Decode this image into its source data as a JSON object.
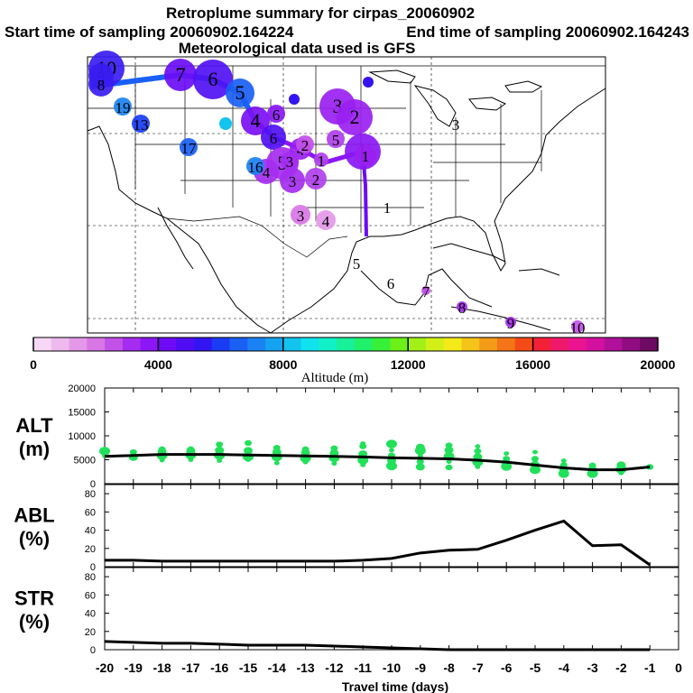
{
  "header": {
    "title": "Retroplume summary for cirpas_20060902",
    "start_label": "Start time of sampling 20060902.164224",
    "end_label": "End time of sampling 20060902.164243",
    "met_label": "Meteorological data used is GFS"
  },
  "colorbar": {
    "min": 0,
    "max": 20000,
    "tick_labels": [
      "0",
      "4000",
      "8000",
      "12000",
      "16000",
      "20000"
    ],
    "tick_values": [
      0,
      4000,
      8000,
      12000,
      16000,
      20000
    ],
    "label": "Altitude (m)",
    "colors": [
      "#f6d8f6",
      "#eebaee",
      "#e498e8",
      "#d876e6",
      "#c251e8",
      "#a52cf0",
      "#8a17f4",
      "#6e0af6",
      "#500df4",
      "#3215f2",
      "#1a3cf4",
      "#1a60f4",
      "#1a82f2",
      "#15a2f0",
      "#12c4ee",
      "#10e2ee",
      "#12f0c8",
      "#18f09a",
      "#20f06a",
      "#38f038",
      "#6cf018",
      "#a2f018",
      "#d2f018",
      "#f4ea18",
      "#f4c418",
      "#f49c18",
      "#f47418",
      "#f44a18",
      "#f42038",
      "#f0186a",
      "#ea1490",
      "#d410a0",
      "#b0109a",
      "#900c80",
      "#6e0a62"
    ]
  },
  "map": {
    "trajectory_labels": [
      {
        "text": "10",
        "c": "#3a1cf2"
      },
      {
        "text": "9",
        "c": "#3a1cf2"
      },
      {
        "text": "8",
        "c": "#3a1cf2"
      },
      {
        "text": "7",
        "c": "#6a0df6"
      },
      {
        "text": "6",
        "c": "#5010f4"
      },
      {
        "text": "5",
        "c": "#1a60f4"
      },
      {
        "text": "4",
        "c": "#7a10f4"
      },
      {
        "text": "3",
        "c": "#9a20f0"
      },
      {
        "text": "2",
        "c": "#9a20f0"
      },
      {
        "text": "1",
        "c": "#8a17f4"
      },
      {
        "text": "6",
        "c": "#5010f4"
      },
      {
        "text": "5",
        "c": "#a52cf0"
      },
      {
        "text": "4",
        "c": "#a52cf0"
      },
      {
        "text": "3",
        "c": "#a52cf0"
      },
      {
        "text": "2",
        "c": "#b040ec"
      },
      {
        "text": "1",
        "c": "#b040ec"
      },
      {
        "text": "1",
        "c": "#9a20f0"
      },
      {
        "text": "3",
        "c": "#d876e6"
      },
      {
        "text": "4",
        "c": "#e498e8"
      },
      {
        "text": "5",
        "c": "#b040ec"
      },
      {
        "text": "6",
        "c": "#8a17f4"
      },
      {
        "text": "4",
        "c": "#9a20f0"
      },
      {
        "text": "3",
        "c": "#a52cf0"
      },
      {
        "text": "2",
        "c": "#c251e8"
      },
      {
        "text": "19",
        "c": "#1a82f2"
      },
      {
        "text": "13",
        "c": "#1a3cf4"
      },
      {
        "text": "17",
        "c": "#1a60f4"
      },
      {
        "text": "16",
        "c": "#1a82f2"
      },
      {
        "text": "3",
        "c": "#000000"
      },
      {
        "text": "1",
        "c": "#000000"
      },
      {
        "text": "5",
        "c": "#000000"
      },
      {
        "text": "6",
        "c": "#000000"
      },
      {
        "text": "7",
        "c": "#c251e8"
      },
      {
        "text": "8",
        "c": "#a52cf0"
      },
      {
        "text": "9",
        "c": "#a52cf0"
      },
      {
        "text": "10",
        "c": "#c251e8"
      }
    ]
  },
  "chart_data": [
    {
      "type": "scatter",
      "name": "ALT",
      "ylabel_line1": "ALT",
      "ylabel_line2": "(m)",
      "ylim": [
        0,
        20000
      ],
      "yticks": [
        "0",
        "5000",
        "10000",
        "15000",
        "20000"
      ],
      "ytick_values": [
        0,
        5000,
        10000,
        15000,
        20000
      ],
      "point_color": "#22e05a",
      "x": [
        -20,
        -19,
        -18,
        -17,
        -16,
        -15,
        -14,
        -13,
        -12,
        -11,
        -10,
        -9,
        -8,
        -7,
        -6,
        -5,
        -4,
        -3,
        -2,
        -1
      ],
      "mean_line": [
        5700,
        5900,
        6100,
        6100,
        6100,
        6000,
        5900,
        5800,
        5700,
        5600,
        5400,
        5300,
        5200,
        4900,
        4500,
        3900,
        3300,
        2900,
        2900,
        3500
      ],
      "points": [
        {
          "x": -20,
          "y": 5800
        },
        {
          "x": -20,
          "y": 6800
        },
        {
          "x": -19,
          "y": 5500
        },
        {
          "x": -19,
          "y": 6600
        },
        {
          "x": -18,
          "y": 4900
        },
        {
          "x": -18,
          "y": 5900
        },
        {
          "x": -18,
          "y": 6700
        },
        {
          "x": -18,
          "y": 7200
        },
        {
          "x": -17,
          "y": 5000
        },
        {
          "x": -17,
          "y": 6000
        },
        {
          "x": -17,
          "y": 6900
        },
        {
          "x": -17,
          "y": 7200
        },
        {
          "x": -16,
          "y": 4800
        },
        {
          "x": -16,
          "y": 5900
        },
        {
          "x": -16,
          "y": 7000
        },
        {
          "x": -16,
          "y": 8200
        },
        {
          "x": -15,
          "y": 5000
        },
        {
          "x": -15,
          "y": 5600
        },
        {
          "x": -15,
          "y": 6900
        },
        {
          "x": -15,
          "y": 8500
        },
        {
          "x": -14,
          "y": 4300
        },
        {
          "x": -14,
          "y": 5600
        },
        {
          "x": -14,
          "y": 6600
        },
        {
          "x": -14,
          "y": 7500
        },
        {
          "x": -13,
          "y": 4500
        },
        {
          "x": -13,
          "y": 5300
        },
        {
          "x": -13,
          "y": 6500
        },
        {
          "x": -13,
          "y": 7200
        },
        {
          "x": -12,
          "y": 4200
        },
        {
          "x": -12,
          "y": 5400
        },
        {
          "x": -12,
          "y": 6400
        },
        {
          "x": -12,
          "y": 7400
        },
        {
          "x": -11,
          "y": 3900
        },
        {
          "x": -11,
          "y": 4900
        },
        {
          "x": -11,
          "y": 6200
        },
        {
          "x": -11,
          "y": 7800
        },
        {
          "x": -11,
          "y": 8400
        },
        {
          "x": -10,
          "y": 3700
        },
        {
          "x": -10,
          "y": 4800
        },
        {
          "x": -10,
          "y": 5900
        },
        {
          "x": -10,
          "y": 7000
        },
        {
          "x": -10,
          "y": 8300
        },
        {
          "x": -9,
          "y": 3500
        },
        {
          "x": -9,
          "y": 4600
        },
        {
          "x": -9,
          "y": 5800
        },
        {
          "x": -9,
          "y": 6900
        },
        {
          "x": -9,
          "y": 7600
        },
        {
          "x": -8,
          "y": 3400
        },
        {
          "x": -8,
          "y": 4600
        },
        {
          "x": -8,
          "y": 5700
        },
        {
          "x": -8,
          "y": 7000
        },
        {
          "x": -8,
          "y": 8000
        },
        {
          "x": -7,
          "y": 3500
        },
        {
          "x": -7,
          "y": 4500
        },
        {
          "x": -7,
          "y": 5600
        },
        {
          "x": -7,
          "y": 6800
        },
        {
          "x": -7,
          "y": 7800
        },
        {
          "x": -6,
          "y": 3600
        },
        {
          "x": -6,
          "y": 4300
        },
        {
          "x": -6,
          "y": 5200
        },
        {
          "x": -6,
          "y": 6300
        },
        {
          "x": -5,
          "y": 2900
        },
        {
          "x": -5,
          "y": 4000
        },
        {
          "x": -5,
          "y": 5200
        },
        {
          "x": -5,
          "y": 6600
        },
        {
          "x": -4,
          "y": 2100
        },
        {
          "x": -4,
          "y": 2900
        },
        {
          "x": -4,
          "y": 3900
        },
        {
          "x": -4,
          "y": 4800
        },
        {
          "x": -3,
          "y": 2100
        },
        {
          "x": -3,
          "y": 2900
        },
        {
          "x": -3,
          "y": 3800
        },
        {
          "x": -2,
          "y": 2200
        },
        {
          "x": -2,
          "y": 3000
        },
        {
          "x": -2,
          "y": 3900
        },
        {
          "x": -1,
          "y": 3500
        }
      ]
    },
    {
      "type": "line",
      "name": "ABL",
      "ylabel_line1": "ABL",
      "ylabel_line2": "(%)",
      "ylim": [
        0,
        90
      ],
      "yticks": [
        "0",
        "20",
        "40",
        "60",
        "80"
      ],
      "ytick_values": [
        0,
        20,
        40,
        60,
        80
      ],
      "x": [
        -20,
        -19,
        -18,
        -17,
        -16,
        -15,
        -14,
        -13,
        -12,
        -11,
        -10,
        -9,
        -8,
        -7,
        -6,
        -5,
        -4,
        -3,
        -2,
        -1
      ],
      "values": [
        7,
        7,
        6,
        6,
        6,
        6,
        6,
        6,
        6,
        7,
        9,
        15,
        18,
        19,
        29,
        40,
        50,
        23,
        24,
        2
      ]
    },
    {
      "type": "line",
      "name": "STR",
      "ylabel_line1": "STR",
      "ylabel_line2": "(%)",
      "ylim": [
        0,
        90
      ],
      "yticks": [
        "0",
        "20",
        "40",
        "60",
        "80"
      ],
      "ytick_values": [
        0,
        20,
        40,
        60,
        80
      ],
      "x": [
        -20,
        -19,
        -18,
        -17,
        -16,
        -15,
        -14,
        -13,
        -12,
        -11,
        -10,
        -9,
        -8,
        -7,
        -6,
        -5,
        -4,
        -3,
        -2,
        -1
      ],
      "values": [
        9,
        8,
        7,
        7,
        6,
        5,
        5,
        5,
        4,
        3,
        2,
        1,
        0,
        0,
        0,
        0,
        0,
        0,
        0,
        0
      ]
    }
  ],
  "xaxis": {
    "label": "Travel time (days)",
    "ticks": [
      "-20",
      "-19",
      "-18",
      "-17",
      "-16",
      "-15",
      "-14",
      "-13",
      "-12",
      "-11",
      "-10",
      "-9",
      "-8",
      "-7",
      "-6",
      "-5",
      "-4",
      "-3",
      "-2",
      "-1",
      "0"
    ],
    "tick_values": [
      -20,
      -19,
      -18,
      -17,
      -16,
      -15,
      -14,
      -13,
      -12,
      -11,
      -10,
      -9,
      -8,
      -7,
      -6,
      -5,
      -4,
      -3,
      -2,
      -1,
      0
    ]
  }
}
